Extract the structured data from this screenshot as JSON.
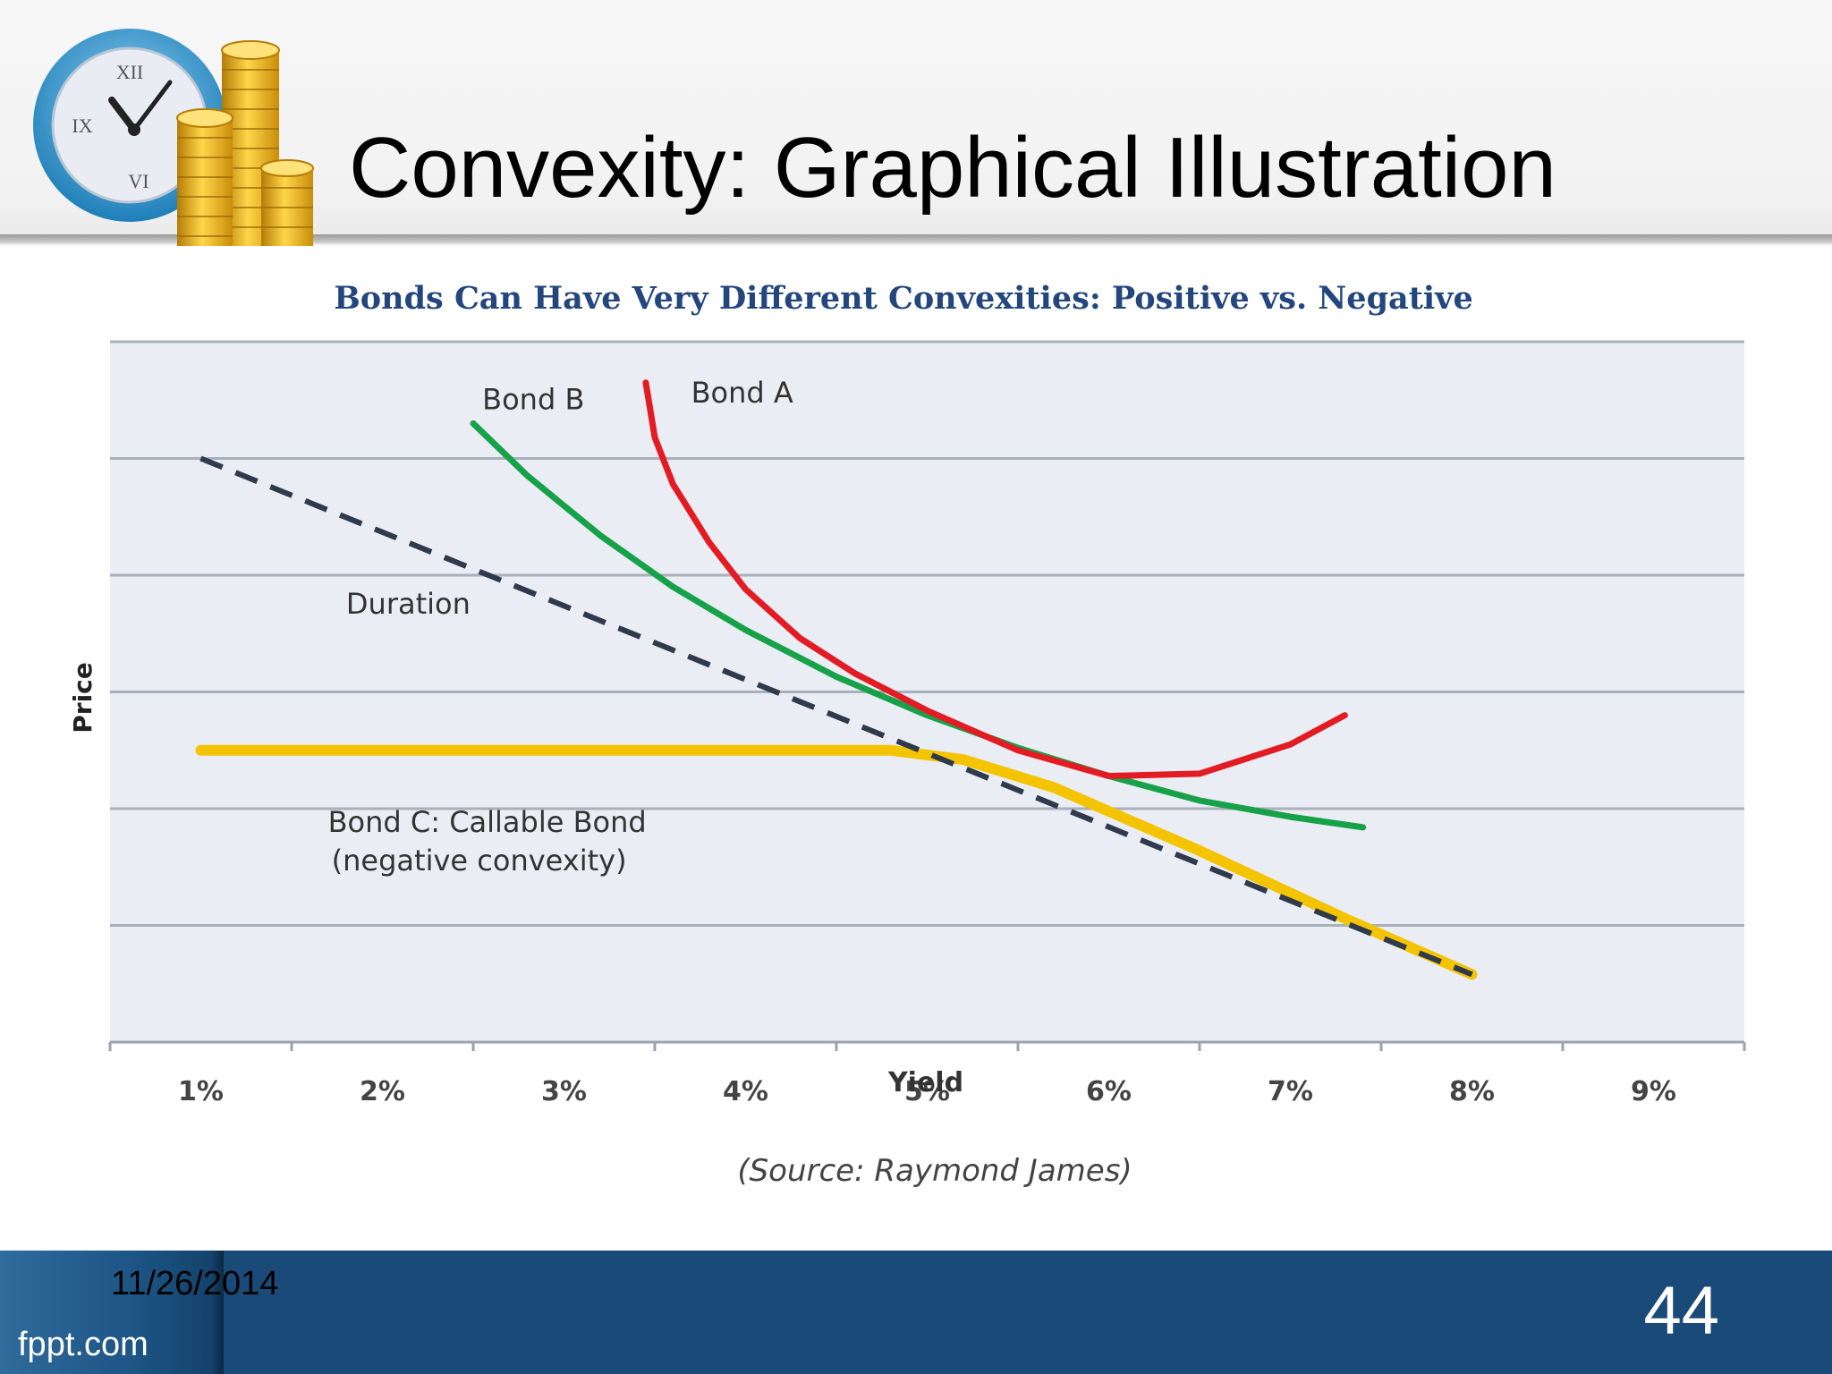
{
  "slide": {
    "title": "Convexity: Graphical Illustration",
    "date": "11/26/2014",
    "page_number": "44",
    "brand": "fppt.com"
  },
  "logo": {
    "clock_numerals": [
      "XII",
      "IX",
      "VI"
    ]
  },
  "colors": {
    "bond_a": "#e31b23",
    "bond_b": "#17a24a",
    "bond_c": "#f5c400",
    "duration": "#2f3b4c",
    "chart_title": "#24467f",
    "footer": "#1a4a78"
  },
  "chart_data": {
    "type": "line",
    "title": "Bonds Can Have Very Different Convexities: Positive vs. Negative",
    "xlabel": "Yield",
    "ylabel": "Price",
    "x_ticks": [
      "1%",
      "2%",
      "3%",
      "4%",
      "5%",
      "6%",
      "7%",
      "8%",
      "9%"
    ],
    "xlim": [
      0.5,
      9.5
    ],
    "ylim": [
      0,
      6
    ],
    "y_ticks_labeled": false,
    "grid": true,
    "source_note": "(Source: Raymond James)",
    "series": [
      {
        "name": "Bond A",
        "color": "#e31b23",
        "style": "solid",
        "points": [
          [
            3.45,
            5.65
          ],
          [
            3.5,
            5.18
          ],
          [
            3.6,
            4.78
          ],
          [
            3.8,
            4.28
          ],
          [
            4.0,
            3.88
          ],
          [
            4.3,
            3.46
          ],
          [
            4.6,
            3.16
          ],
          [
            5.0,
            2.84
          ],
          [
            5.5,
            2.5
          ],
          [
            6.0,
            2.28
          ],
          [
            6.5,
            2.3
          ],
          [
            7.0,
            2.55
          ],
          [
            7.3,
            2.8
          ]
        ]
      },
      {
        "name": "Bond B",
        "color": "#17a24a",
        "style": "solid",
        "points": [
          [
            2.5,
            5.3
          ],
          [
            2.8,
            4.85
          ],
          [
            3.2,
            4.34
          ],
          [
            3.6,
            3.9
          ],
          [
            4.0,
            3.53
          ],
          [
            4.5,
            3.13
          ],
          [
            5.0,
            2.8
          ],
          [
            5.5,
            2.52
          ],
          [
            6.0,
            2.28
          ],
          [
            6.5,
            2.07
          ],
          [
            7.0,
            1.93
          ],
          [
            7.4,
            1.84
          ]
        ]
      },
      {
        "name": "Duration",
        "color": "#2f3b4c",
        "style": "dashed",
        "points": [
          [
            1.0,
            5.0
          ],
          [
            8.0,
            0.58
          ]
        ]
      },
      {
        "name": "Bond C: Callable Bond (negative convexity)",
        "color": "#f5c400",
        "style": "solid",
        "points": [
          [
            1.0,
            2.5
          ],
          [
            4.8,
            2.5
          ],
          [
            5.2,
            2.42
          ],
          [
            5.7,
            2.18
          ],
          [
            6.5,
            1.64
          ],
          [
            7.3,
            1.06
          ],
          [
            8.0,
            0.58
          ]
        ]
      }
    ],
    "annotations": [
      {
        "text": "Bond B",
        "x": 2.55,
        "y": 5.42
      },
      {
        "text": "Bond A",
        "x": 3.7,
        "y": 5.48
      },
      {
        "text": "Duration",
        "x": 1.8,
        "y": 3.67
      },
      {
        "text": "Bond C: Callable Bond",
        "x": 1.7,
        "y": 1.8
      },
      {
        "text": "(negative convexity)",
        "x": 1.72,
        "y": 1.47
      }
    ]
  }
}
